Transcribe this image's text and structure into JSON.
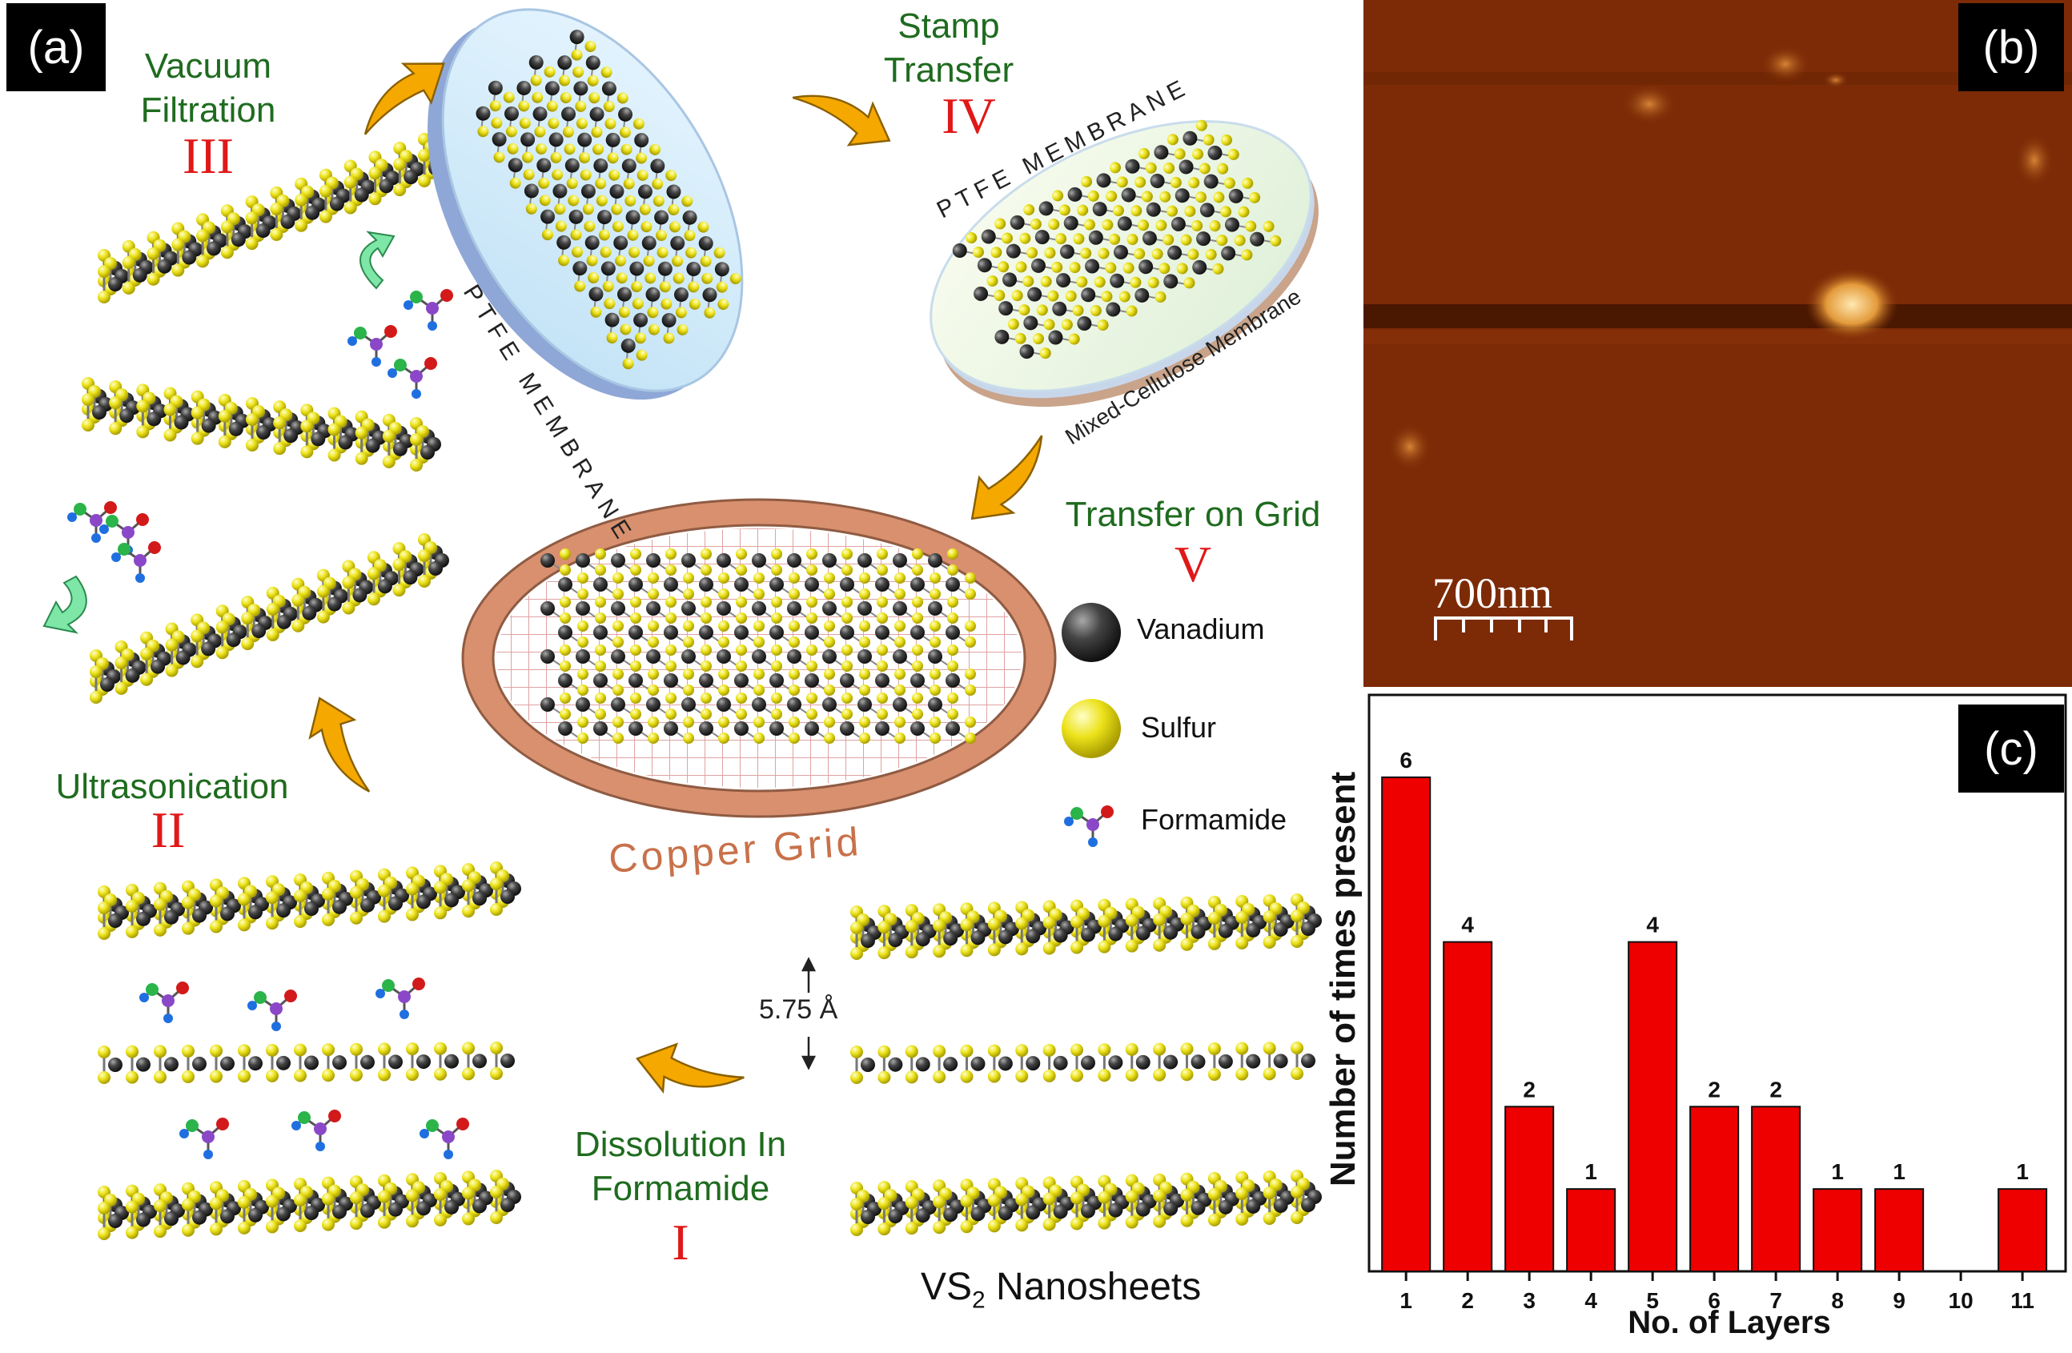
{
  "panels": {
    "a": "(a)",
    "b": "(b)",
    "c": "(c)"
  },
  "steps": {
    "vacuum": {
      "line1": "Vacuum",
      "line2": "Filtration",
      "roman": "III"
    },
    "stamp": {
      "line1": "Stamp",
      "line2": "Transfer",
      "roman": "IV"
    },
    "ultra": {
      "line1": "Ultrasonication",
      "roman": "II"
    },
    "grid": {
      "line1": "Transfer on Grid",
      "roman": "V"
    },
    "dissolution": {
      "line1": "Dissolution In",
      "line2": "Formamide",
      "roman": "I"
    }
  },
  "labels": {
    "ptfe1": "PTFE MEMBRANE",
    "ptfe2": "PTFE MEMBRANE",
    "mixed": "Mixed-Cellulose Membrane",
    "copper": "Copper Grid",
    "spacing": "5.75 Å",
    "nanosheets_prefix": "VS",
    "nanosheets_sub": "2",
    "nanosheets_suffix": " Nanosheets"
  },
  "legend": [
    {
      "name": "Vanadium",
      "icon": "vanadium-atom-icon"
    },
    {
      "name": "Sulfur",
      "icon": "sulfur-atom-icon"
    },
    {
      "name": "Formamide",
      "icon": "formamide-molecule-icon"
    }
  ],
  "afm": {
    "scale_label": "700nm"
  },
  "colors": {
    "vanadium": "#3c3c3c",
    "sulfur": "#e8e010",
    "step_text": "#1f6b1f",
    "roman": "#e01818",
    "bar": "#ee0000",
    "arrow": "#f5a800",
    "copper": "#d89070"
  },
  "chart_data": {
    "type": "bar",
    "categories": [
      "1",
      "2",
      "3",
      "4",
      "5",
      "6",
      "7",
      "8",
      "9",
      "10",
      "11"
    ],
    "values": [
      6,
      4,
      2,
      1,
      4,
      2,
      2,
      1,
      1,
      0,
      1
    ],
    "data_labels": [
      "6",
      "4",
      "2",
      "1",
      "4",
      "2",
      "2",
      "1",
      "1",
      "",
      "1"
    ],
    "xlabel": "No. of Layers",
    "ylabel": "Number of times present",
    "ylim": [
      0,
      7
    ]
  }
}
